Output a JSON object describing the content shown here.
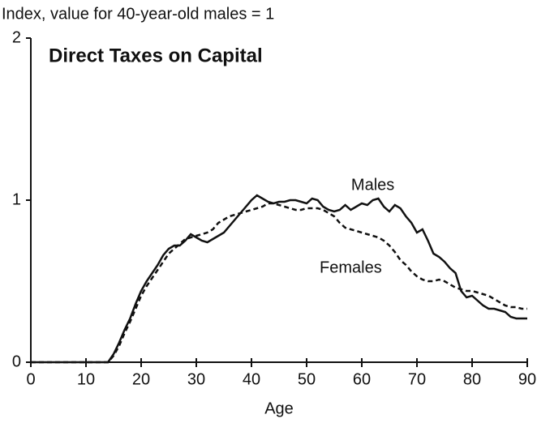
{
  "chart_data": {
    "type": "line",
    "title": "Direct Taxes on Capital",
    "y_label": "Index, value for 40-year-old males = 1",
    "x_label": "Age",
    "x": [
      0,
      14,
      15,
      16,
      17,
      18,
      19,
      20,
      21,
      22,
      23,
      24,
      25,
      26,
      27,
      28,
      29,
      30,
      31,
      32,
      33,
      34,
      35,
      36,
      37,
      38,
      39,
      40,
      41,
      42,
      43,
      44,
      45,
      46,
      47,
      48,
      49,
      50,
      51,
      52,
      53,
      54,
      55,
      56,
      57,
      58,
      59,
      60,
      61,
      62,
      63,
      64,
      65,
      66,
      67,
      68,
      69,
      70,
      71,
      72,
      73,
      74,
      75,
      76,
      77,
      78,
      79,
      80,
      81,
      82,
      83,
      84,
      85,
      86,
      87,
      88,
      89,
      90
    ],
    "series": [
      {
        "name": "Males",
        "color": "#111111",
        "dash": false,
        "values": [
          0,
          0,
          0.05,
          0.12,
          0.2,
          0.27,
          0.36,
          0.44,
          0.5,
          0.55,
          0.6,
          0.66,
          0.7,
          0.72,
          0.72,
          0.75,
          0.79,
          0.77,
          0.75,
          0.74,
          0.76,
          0.78,
          0.8,
          0.84,
          0.88,
          0.92,
          0.96,
          1.0,
          1.03,
          1.01,
          0.99,
          0.98,
          0.99,
          0.99,
          1.0,
          1.0,
          0.99,
          0.98,
          1.01,
          1.0,
          0.96,
          0.94,
          0.93,
          0.94,
          0.97,
          0.94,
          0.96,
          0.98,
          0.97,
          1.0,
          1.01,
          0.96,
          0.93,
          0.97,
          0.95,
          0.9,
          0.86,
          0.8,
          0.82,
          0.75,
          0.67,
          0.65,
          0.62,
          0.58,
          0.55,
          0.44,
          0.4,
          0.41,
          0.38,
          0.35,
          0.33,
          0.33,
          0.32,
          0.31,
          0.28,
          0.27,
          0.27,
          0.27
        ]
      },
      {
        "name": "Females",
        "color": "#111111",
        "dash": true,
        "values": [
          0,
          0,
          0.04,
          0.1,
          0.18,
          0.25,
          0.33,
          0.41,
          0.47,
          0.52,
          0.57,
          0.62,
          0.67,
          0.7,
          0.73,
          0.76,
          0.77,
          0.78,
          0.79,
          0.8,
          0.82,
          0.86,
          0.88,
          0.9,
          0.91,
          0.92,
          0.93,
          0.94,
          0.95,
          0.96,
          0.98,
          0.98,
          0.97,
          0.96,
          0.95,
          0.94,
          0.94,
          0.95,
          0.95,
          0.95,
          0.94,
          0.92,
          0.9,
          0.86,
          0.83,
          0.82,
          0.81,
          0.8,
          0.79,
          0.78,
          0.77,
          0.75,
          0.72,
          0.68,
          0.63,
          0.6,
          0.56,
          0.53,
          0.51,
          0.5,
          0.5,
          0.51,
          0.5,
          0.48,
          0.46,
          0.45,
          0.44,
          0.44,
          0.43,
          0.42,
          0.41,
          0.39,
          0.37,
          0.35,
          0.34,
          0.34,
          0.33,
          0.33
        ]
      }
    ],
    "annotations": [
      {
        "text": "Males",
        "x": 62,
        "y": 1.09
      },
      {
        "text": "Females",
        "x": 58,
        "y": 0.58
      }
    ],
    "xlim": [
      0,
      90
    ],
    "ylim": [
      0,
      2
    ],
    "xticks": [
      0,
      10,
      20,
      30,
      40,
      50,
      60,
      70,
      80,
      90
    ],
    "yticks": [
      0,
      1,
      2
    ],
    "grid": false
  }
}
